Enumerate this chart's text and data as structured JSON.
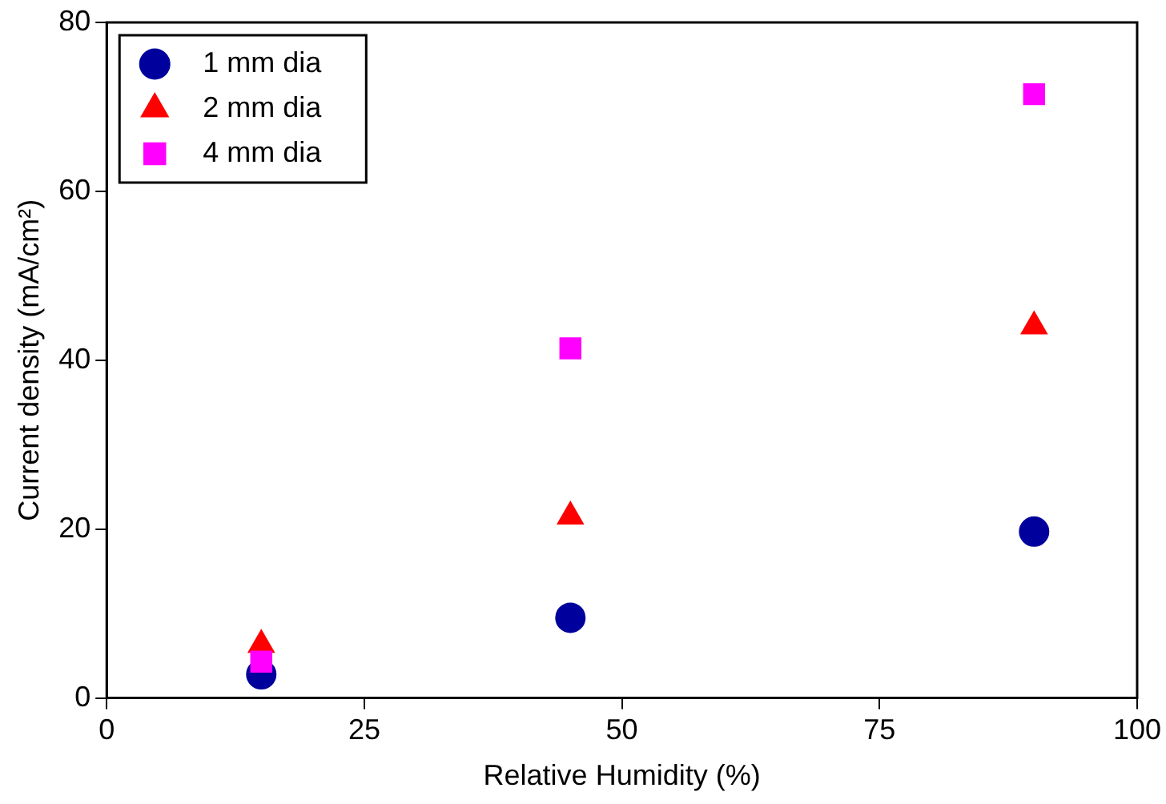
{
  "chart_data": {
    "type": "scatter",
    "xlabel": "Relative Humidity (%)",
    "ylabel": "Current density (mA/cm²)",
    "x": [
      15,
      45,
      90
    ],
    "series": [
      {
        "name": "1 mm dia",
        "color": "#00009c",
        "marker": "circle",
        "values": [
          2.8,
          9.5,
          19.7
        ]
      },
      {
        "name": "2 mm dia",
        "color": "#ff0000",
        "marker": "triangle",
        "values": [
          6.3,
          21.5,
          44
        ]
      },
      {
        "name": "4 mm dia",
        "color": "#ff00ff",
        "marker": "square",
        "values": [
          4.3,
          41.4,
          71.5
        ]
      }
    ],
    "xlim": [
      0,
      100
    ],
    "xticks": [
      0,
      25,
      50,
      75,
      100
    ],
    "ylim": [
      0,
      80
    ],
    "yticks": [
      0,
      20,
      40,
      60,
      80
    ],
    "grid": false,
    "legend": "top left"
  }
}
